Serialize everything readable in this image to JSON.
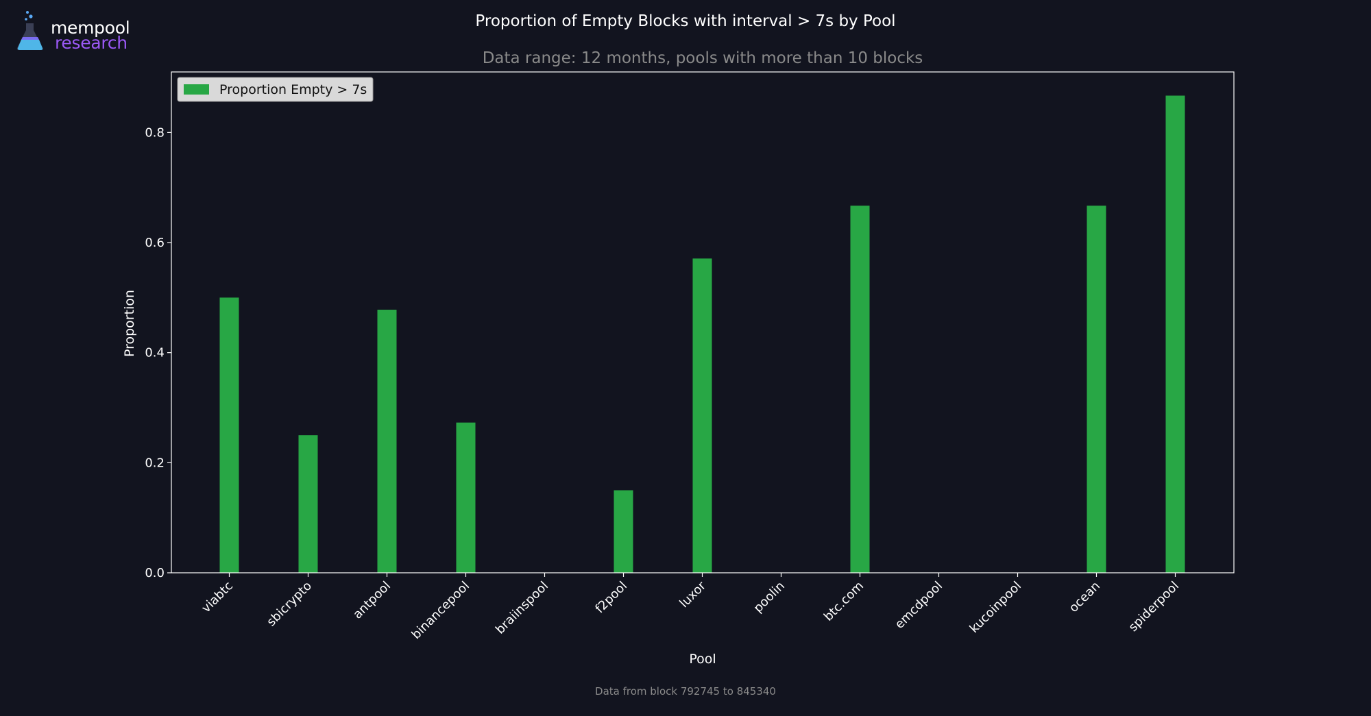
{
  "logo": {
    "word1": "mempool",
    "word2": "research"
  },
  "chart_data": {
    "type": "bar",
    "title": "Proportion of Empty Blocks with interval > 7s by Pool",
    "subtitle": "Data range: 12 months, pools with more than 10 blocks",
    "xlabel": "Pool",
    "ylabel": "Proportion",
    "categories": [
      "viabtc",
      "sbicrypto",
      "antpool",
      "binancepool",
      "braiinspool",
      "f2pool",
      "luxor",
      "poolin",
      "btc.com",
      "emcdpool",
      "kucoinpool",
      "ocean",
      "spiderpool"
    ],
    "series": [
      {
        "name": "Proportion Empty > 7s",
        "values": [
          0.5,
          0.25,
          0.478,
          0.273,
          0.0,
          0.15,
          0.571,
          0.0,
          0.667,
          0.0,
          0.0,
          0.667,
          0.867
        ]
      }
    ],
    "ylim": [
      0,
      0.91
    ],
    "yticks": [
      0.0,
      0.2,
      0.4,
      0.6,
      0.8
    ],
    "ytick_labels": [
      "0.0",
      "0.2",
      "0.4",
      "0.6",
      "0.8"
    ],
    "legend_position": "upper-left",
    "grid": false,
    "footer": "Data from block 792745 to 845340",
    "colors": {
      "bar": "#28a745",
      "background": "#12141f",
      "axes": "#ffffff",
      "legend_bg": "#d9d9d9",
      "muted_text": "#8a8a8a"
    }
  }
}
